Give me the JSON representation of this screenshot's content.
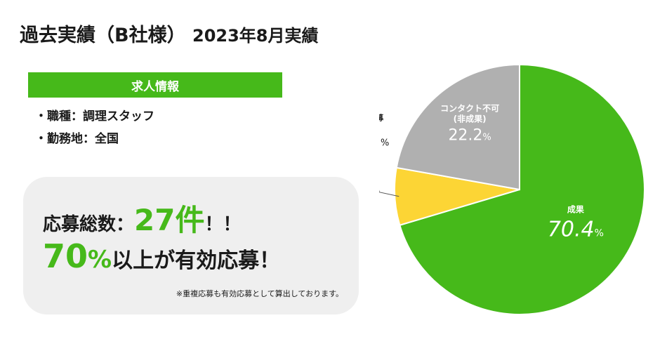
{
  "header": {
    "title": "過去実績（B社様）",
    "subtitle": "2023年8月実績"
  },
  "job_info": {
    "heading": "求人情報",
    "items": [
      "・職種：調理スタッフ",
      "・勤務地：全国"
    ]
  },
  "summary": {
    "line1_prefix": "応募総数：",
    "line1_value": "27件",
    "line1_suffix": "！！",
    "line2_value": "70",
    "line2_unit": "%",
    "line2_suffix": "以上が有効応募！",
    "note": "※重複応募も有効応募として算出しております。"
  },
  "chart_data": {
    "type": "pie",
    "slices": [
      {
        "label": "成果",
        "value": 70.4,
        "color": "#46b91a"
      },
      {
        "label": "重複応募",
        "value": 7.4,
        "color": "#fcd535"
      },
      {
        "label": "コンタクト不可\n(非成果)",
        "value": 22.2,
        "color": "#b0b0b0"
      }
    ],
    "value_unit": "%",
    "start_angle_deg": 0,
    "direction": "clockwise",
    "callout_slice": "重複応募"
  }
}
